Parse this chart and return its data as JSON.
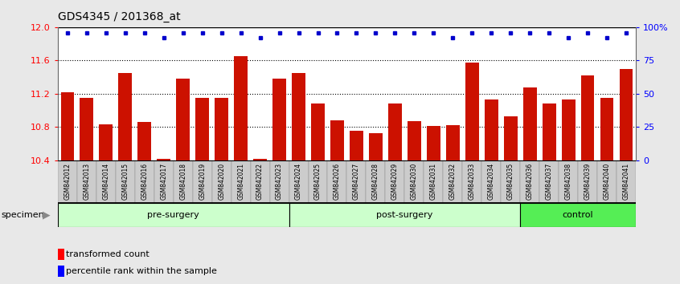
{
  "title": "GDS4345 / 201368_at",
  "samples": [
    "GSM842012",
    "GSM842013",
    "GSM842014",
    "GSM842015",
    "GSM842016",
    "GSM842017",
    "GSM842018",
    "GSM842019",
    "GSM842020",
    "GSM842021",
    "GSM842022",
    "GSM842023",
    "GSM842024",
    "GSM842025",
    "GSM842026",
    "GSM842027",
    "GSM842028",
    "GSM842029",
    "GSM842030",
    "GSM842031",
    "GSM842032",
    "GSM842033",
    "GSM842034",
    "GSM842035",
    "GSM842036",
    "GSM842037",
    "GSM842038",
    "GSM842039",
    "GSM842040",
    "GSM842041"
  ],
  "bar_values": [
    11.22,
    11.15,
    10.83,
    11.45,
    10.86,
    10.42,
    11.38,
    11.15,
    11.15,
    11.65,
    10.42,
    11.38,
    11.45,
    11.08,
    10.88,
    10.76,
    10.73,
    11.08,
    10.87,
    10.81,
    10.82,
    11.57,
    11.13,
    10.93,
    11.28,
    11.08,
    11.13,
    11.42,
    11.15,
    11.5
  ],
  "percentile_values": [
    11.93,
    11.93,
    11.93,
    11.93,
    11.93,
    11.87,
    11.93,
    11.93,
    11.93,
    11.93,
    11.87,
    11.93,
    11.93,
    11.93,
    11.93,
    11.93,
    11.93,
    11.93,
    11.93,
    11.93,
    11.87,
    11.93,
    11.93,
    11.93,
    11.93,
    11.93,
    11.87,
    11.93,
    11.87,
    11.93
  ],
  "bar_color": "#cc1100",
  "percentile_color": "#0000cc",
  "ylim": [
    10.4,
    12.0
  ],
  "yticks": [
    10.4,
    10.8,
    11.2,
    11.6,
    12.0
  ],
  "grid_values": [
    10.8,
    11.2,
    11.6
  ],
  "right_yticks": [
    0,
    25,
    50,
    75,
    100
  ],
  "right_yticklabels": [
    "0",
    "25",
    "50",
    "75",
    "100%"
  ],
  "group_boundaries": [
    {
      "start": 0,
      "end": 12,
      "label": "pre-surgery",
      "color": "#ccffcc"
    },
    {
      "start": 12,
      "end": 24,
      "label": "post-surgery",
      "color": "#ccffcc"
    },
    {
      "start": 24,
      "end": 30,
      "label": "control",
      "color": "#55ee55"
    }
  ],
  "tick_bg_color": "#d0d0d0",
  "fig_bg_color": "#e8e8e8",
  "plot_bg_color": "#ffffff"
}
